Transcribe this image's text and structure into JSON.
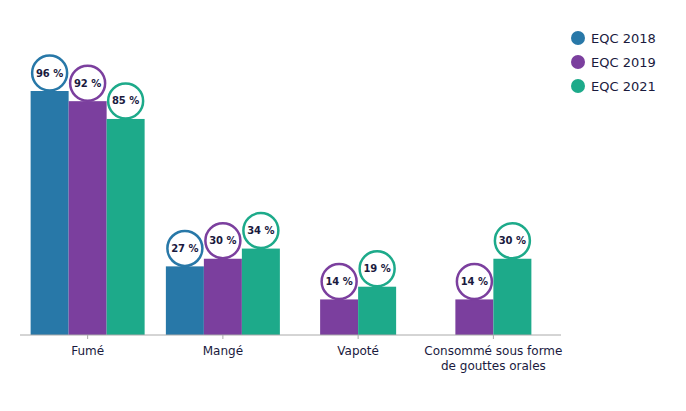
{
  "chart_data": {
    "type": "bar",
    "categories": [
      "Fumé",
      "Mangé",
      "Vapoté",
      "Consommé sous forme\nde gouttes orales"
    ],
    "series": [
      {
        "name": "EQC 2018",
        "color": "#2878A8",
        "values": [
          96,
          27,
          null,
          null
        ],
        "value_labels": [
          "96 %",
          "27 %",
          null,
          null
        ]
      },
      {
        "name": "EQC 2019",
        "color": "#7B3F9E",
        "values": [
          92,
          30,
          14,
          14
        ],
        "value_labels": [
          "92 %",
          "30 %",
          "14 %",
          "14 %"
        ]
      },
      {
        "name": "EQC 2021",
        "color": "#1DAA8A",
        "values": [
          85,
          34,
          19,
          30
        ],
        "value_labels": [
          "85 %",
          "34 %",
          "19 %",
          "30 %"
        ]
      }
    ],
    "ylim": [
      0,
      120
    ],
    "grid": false,
    "legend": "upper right",
    "data_labels": true,
    "tick_labels": "x"
  }
}
